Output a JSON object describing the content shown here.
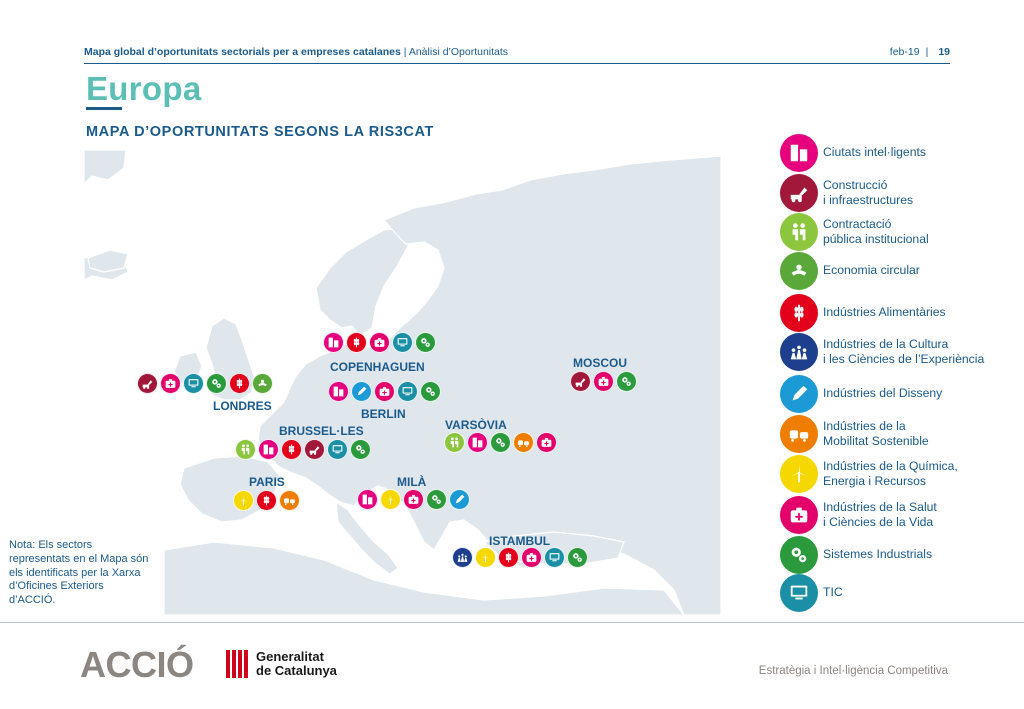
{
  "header": {
    "doc_title": "Mapa global d’oportunitats sectorials per a empreses catalanes",
    "separator": " | ",
    "section": "Anàlisi d’Oportunitats",
    "date": "feb-19",
    "date_bar": "|",
    "page": "19"
  },
  "title": "Europa",
  "subtitle": "MAPA D’OPORTUNITATS SEGONS LA RIS3CAT",
  "sectors": {
    "ciutats": {
      "label": "Ciutats intel·ligents",
      "color": "#e6007e",
      "icon": "building-icon"
    },
    "construccio": {
      "label": "Construcció\ni infraestructures",
      "color": "#a1183a",
      "icon": "excavator-icon"
    },
    "contractacio": {
      "label": "Contractació\npública institucional",
      "color": "#8cc63f",
      "icon": "handshake-icon"
    },
    "economia": {
      "label": "Economia circular",
      "color": "#5aa83a",
      "icon": "recycle-hand-icon"
    },
    "alimentaries": {
      "label": "Indústries Alimentàries",
      "color": "#e2001a",
      "icon": "wheat-icon"
    },
    "cultura": {
      "label": "Indústries de la Cultura\ni les Ciències de l’Experiència",
      "color": "#1d3f8e",
      "icon": "people-icon"
    },
    "disseny": {
      "label": "Indústries del Disseny",
      "color": "#1b9ad6",
      "icon": "pencil-icon"
    },
    "mobilitat": {
      "label": "Indústries de la\nMobilitat Sostenible",
      "color": "#ef7d00",
      "icon": "vehicles-icon"
    },
    "quimica": {
      "label": "Indústries de la Química,\nEnergia i Recursos",
      "color": "#f5d800",
      "icon": "wind-turbine-icon"
    },
    "salut": {
      "label": "Indústries de la Salut\ni Ciències de la Vida",
      "color": "#e4006b",
      "icon": "medical-kit-icon"
    },
    "industrials": {
      "label": "Sistemes Industrials",
      "color": "#2a9a3d",
      "icon": "gears-icon"
    },
    "tic": {
      "label": "TIC",
      "color": "#1b8fa5",
      "icon": "computer-icon"
    }
  },
  "legend_order": [
    "ciutats",
    "construccio",
    "contractacio",
    "economia",
    "alimentaries",
    "cultura",
    "disseny",
    "mobilitat",
    "quimica",
    "salut",
    "industrials",
    "tic"
  ],
  "cities": [
    {
      "id": "londres",
      "name": "LONDRES",
      "sectors": [
        "construccio",
        "salut",
        "tic",
        "industrials",
        "alimentaries",
        "economia"
      ]
    },
    {
      "id": "copenhaguen",
      "name": "COPENHAGUEN",
      "sectors": [
        "ciutats",
        "alimentaries",
        "salut",
        "tic",
        "industrials"
      ]
    },
    {
      "id": "berlin",
      "name": "BERLIN",
      "sectors": [
        "ciutats",
        "disseny",
        "salut",
        "tic",
        "industrials"
      ]
    },
    {
      "id": "brussel",
      "name": "BRUSSEL·LES",
      "sectors": [
        "contractacio",
        "ciutats",
        "alimentaries",
        "construccio",
        "tic",
        "industrials"
      ]
    },
    {
      "id": "moscou",
      "name": "MOSCOU",
      "sectors": [
        "construccio",
        "salut",
        "industrials"
      ]
    },
    {
      "id": "varsovia",
      "name": "VARSÒVIA",
      "sectors": [
        "contractacio",
        "ciutats",
        "industrials",
        "mobilitat",
        "salut"
      ]
    },
    {
      "id": "paris",
      "name": "PARIS",
      "sectors": [
        "quimica",
        "alimentaries",
        "mobilitat"
      ]
    },
    {
      "id": "mila",
      "name": "MILÀ",
      "sectors": [
        "ciutats",
        "quimica",
        "salut",
        "industrials",
        "disseny"
      ]
    },
    {
      "id": "istambul",
      "name": "ISTAMBUL",
      "sectors": [
        "cultura",
        "quimica",
        "alimentaries",
        "salut",
        "tic",
        "industrials"
      ]
    }
  ],
  "note": "Nota: Els sectors\nrepresentats en el Mapa són\nels identificats per la Xarxa\nd’Oficines Exteriors\nd’ACCIÓ.",
  "footer": {
    "logo": "ACCIÓ",
    "gencat_line1": "Generalitat",
    "gencat_line2": "de Catalunya",
    "right": "Estratègia i Intel·ligència Competitiva"
  }
}
